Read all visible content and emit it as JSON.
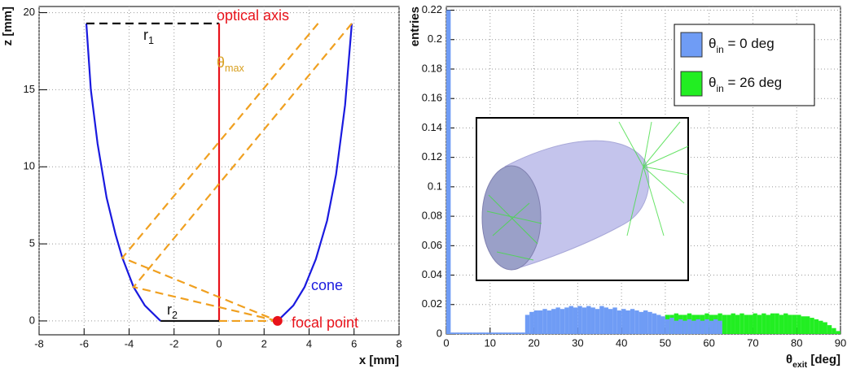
{
  "chart_data": [
    {
      "type": "line",
      "x_label": "x [mm]",
      "y_label": "z [mm]",
      "xlim": [
        -8,
        8
      ],
      "xticks": [
        -8,
        -6,
        -4,
        -2,
        0,
        2,
        4,
        6,
        8
      ],
      "ylim": [
        -0.9,
        20.4
      ],
      "yticks": [
        0,
        5,
        10,
        15,
        20
      ],
      "grid": true,
      "lines": [
        {
          "color": "#1a1adf",
          "dashed": false,
          "x": [
            -5.9,
            -5.7,
            -5.4,
            -5,
            -4.6,
            -4.3,
            -3.8,
            -3.3,
            -2.6
          ],
          "values": [
            19.3,
            15,
            11.5,
            8,
            5.6,
            4.1,
            2.2,
            1,
            0
          ]
        },
        {
          "color": "#1a1adf",
          "dashed": false,
          "x": [
            2.6,
            3.3,
            3.8,
            4.3,
            4.8,
            5.2,
            5.6,
            5.9
          ],
          "values": [
            0,
            1,
            2.2,
            4,
            6.5,
            9.5,
            14,
            19.3
          ]
        },
        {
          "color": "#111111",
          "dashed": true,
          "x": [
            -5.9,
            0
          ],
          "values": [
            19.3,
            19.3
          ]
        },
        {
          "color": "#e8121a",
          "dashed": false,
          "x": [
            0,
            0
          ],
          "values": [
            0,
            19.3
          ]
        },
        {
          "color": "#111111",
          "dashed": false,
          "x": [
            -2.6,
            0
          ],
          "values": [
            0,
            0
          ]
        },
        {
          "color": "#f0a020",
          "dashed": true,
          "x": [
            4.4,
            -4.3,
            2.6
          ],
          "values": [
            19.3,
            4.1,
            0
          ]
        },
        {
          "color": "#f0a020",
          "dashed": true,
          "x": [
            5.9,
            -3.8,
            2.6
          ],
          "values": [
            19.3,
            2.2,
            0
          ]
        },
        {
          "color": "#f0a020",
          "dashed": true,
          "x": [
            0,
            2.6
          ],
          "values": [
            0,
            0
          ]
        }
      ],
      "markers": [
        {
          "color": "#e8121a",
          "x": [
            2.6
          ],
          "values": [
            0
          ]
        }
      ],
      "annotations": [
        {
          "base": "r",
          "sub": "1",
          "color": "#111111"
        },
        {
          "text": "optical axis",
          "color": "#e8121a"
        },
        {
          "base": "θ",
          "sub": "max",
          "color": "#d8a020"
        },
        {
          "text": "cone",
          "color": "#1a1adf"
        },
        {
          "base": "r",
          "sub": "2",
          "color": "#111111"
        },
        {
          "text": "focal point",
          "color": "#e8121a"
        }
      ]
    },
    {
      "type": "histogram",
      "x_label": {
        "base": "θ",
        "sub": "exit",
        "rest": " [deg]"
      },
      "y_label": "entries",
      "xlim": [
        0,
        90
      ],
      "xticks": [
        0,
        10,
        20,
        30,
        40,
        50,
        60,
        70,
        80,
        90
      ],
      "ylim": [
        0,
        0.2225
      ],
      "yticks": [
        0,
        0.02,
        0.04,
        0.06,
        0.08,
        0.1,
        0.12,
        0.14,
        0.16,
        0.18,
        0.2,
        0.22
      ],
      "grid": true,
      "bins": [
        0,
        1,
        2,
        3,
        4,
        5,
        6,
        7,
        8,
        9,
        10,
        11,
        12,
        13,
        14,
        15,
        16,
        17,
        18,
        19,
        20,
        21,
        22,
        23,
        24,
        25,
        26,
        27,
        28,
        29,
        30,
        31,
        32,
        33,
        34,
        35,
        36,
        37,
        38,
        39,
        40,
        41,
        42,
        43,
        44,
        45,
        46,
        47,
        48,
        49,
        50,
        51,
        52,
        53,
        54,
        55,
        56,
        57,
        58,
        59,
        60,
        61,
        62,
        63,
        64,
        65,
        66,
        67,
        68,
        69,
        70,
        71,
        72,
        73,
        74,
        75,
        76,
        77,
        78,
        79,
        80,
        81,
        82,
        83,
        84,
        85,
        86,
        87,
        88,
        89,
        90
      ],
      "series": [
        {
          "name": {
            "base": "θ",
            "sub": "in",
            "rest": " = 0 deg"
          },
          "color": "#6f9cf5",
          "values": [
            0.22,
            0.001,
            0.001,
            0.001,
            0.001,
            0.001,
            0.001,
            0.001,
            0.001,
            0.001,
            0.001,
            0.001,
            0.001,
            0.001,
            0.001,
            0.001,
            0.001,
            0.001,
            0.013,
            0.015,
            0.016,
            0.016,
            0.017,
            0.016,
            0.017,
            0.018,
            0.017,
            0.018,
            0.019,
            0.018,
            0.019,
            0.018,
            0.019,
            0.018,
            0.017,
            0.019,
            0.018,
            0.017,
            0.018,
            0.016,
            0.017,
            0.016,
            0.017,
            0.016,
            0.015,
            0.016,
            0.015,
            0.014,
            0.013,
            0.012,
            0.01,
            0.011,
            0.009,
            0.01,
            0.009,
            0.01,
            0.009,
            0.01,
            0.009,
            0.01,
            0.009,
            0.01,
            0.009,
            0,
            0,
            0,
            0,
            0,
            0,
            0,
            0,
            0,
            0,
            0,
            0,
            0,
            0,
            0,
            0,
            0,
            0,
            0,
            0,
            0,
            0,
            0,
            0,
            0,
            0,
            0
          ]
        },
        {
          "name": {
            "base": "θ",
            "sub": "in",
            "rest": " = 26 deg"
          },
          "color": "#22ee22",
          "values": [
            0,
            0,
            0,
            0,
            0,
            0,
            0,
            0,
            0,
            0,
            0,
            0,
            0,
            0,
            0,
            0,
            0,
            0,
            0,
            0,
            0,
            0,
            0,
            0,
            0,
            0,
            0,
            0,
            0,
            0,
            0,
            0,
            0,
            0,
            0,
            0,
            0,
            0,
            0,
            0,
            0,
            0,
            0,
            0,
            0,
            0,
            0,
            0,
            0,
            0,
            0.013,
            0.013,
            0.014,
            0.013,
            0.013,
            0.014,
            0.013,
            0.013,
            0.013,
            0.014,
            0.013,
            0.013,
            0.014,
            0.013,
            0.013,
            0.014,
            0.013,
            0.014,
            0.013,
            0.013,
            0.014,
            0.013,
            0.014,
            0.013,
            0.014,
            0.014,
            0.013,
            0.014,
            0.013,
            0.013,
            0.013,
            0.012,
            0.012,
            0.011,
            0.01,
            0.009,
            0.008,
            0.006,
            0.004,
            0.002
          ]
        }
      ]
    }
  ]
}
